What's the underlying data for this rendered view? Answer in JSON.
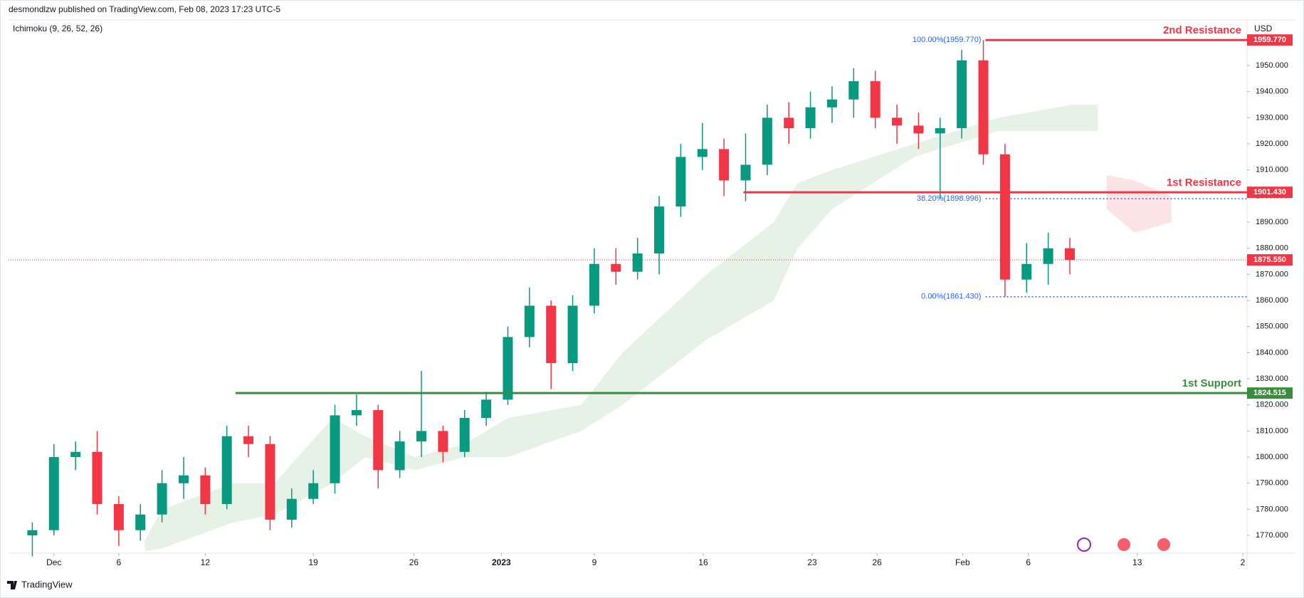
{
  "header": {
    "publisher": "desmondlzw published on TradingView.com, Feb 08, 2023 17:23 UTC-5",
    "indicator": "Ichimoku (9, 26, 52, 26)",
    "currency": "USD",
    "footer": "TradingView"
  },
  "chart_data": {
    "type": "candlestick",
    "x": [
      -1,
      0,
      1,
      2,
      3,
      4,
      5,
      6,
      7,
      8,
      9,
      10,
      11,
      12,
      13,
      14,
      15,
      16,
      17,
      18,
      19,
      20,
      21,
      22,
      23,
      24,
      25,
      26,
      27,
      28,
      29,
      30,
      31,
      32,
      33,
      34,
      35,
      36,
      37,
      38,
      39,
      40,
      41,
      42,
      43,
      44,
      45,
      46,
      47
    ],
    "open": [
      1770,
      1772,
      1800,
      1802,
      1782,
      1772,
      1778,
      1790,
      1793,
      1782,
      1808,
      1805,
      1776,
      1784,
      1790,
      1816,
      1818,
      1795,
      1806,
      1810,
      1802,
      1815,
      1822,
      1846,
      1858,
      1836,
      1858,
      1874,
      1871,
      1878,
      1896,
      1915,
      1918,
      1906,
      1912,
      1930,
      1926,
      1934,
      1937,
      1944,
      1930,
      1927,
      1924,
      1926,
      1952,
      1916,
      1868,
      1874,
      1880
    ],
    "high": [
      1775,
      1805,
      1806,
      1810,
      1785,
      1782,
      1795,
      1800,
      1796,
      1812,
      1812,
      1808,
      1788,
      1795,
      1820,
      1824,
      1820,
      1810,
      1833,
      1812,
      1818,
      1825,
      1850,
      1865,
      1860,
      1862,
      1880,
      1880,
      1884,
      1900,
      1920,
      1928,
      1922,
      1924,
      1935,
      1936,
      1940,
      1942,
      1949,
      1948,
      1935,
      1932,
      1930,
      1956,
      1959.77,
      1920,
      1882,
      1886,
      1884
    ],
    "low": [
      1762,
      1770,
      1795,
      1778,
      1766,
      1768,
      1775,
      1784,
      1778,
      1780,
      1800,
      1772,
      1773,
      1782,
      1786,
      1812,
      1788,
      1792,
      1800,
      1798,
      1800,
      1812,
      1820,
      1842,
      1826,
      1833,
      1855,
      1866,
      1868,
      1870,
      1892,
      1910,
      1900,
      1898,
      1908,
      1920,
      1922,
      1928,
      1930,
      1926,
      1920,
      1918,
      1899,
      1922,
      1912,
      1861.43,
      1863,
      1866,
      1870
    ],
    "close": [
      1772,
      1800,
      1802,
      1782,
      1772,
      1778,
      1790,
      1793,
      1782,
      1808,
      1805,
      1776,
      1784,
      1790,
      1816,
      1818,
      1795,
      1806,
      1810,
      1802,
      1815,
      1822,
      1846,
      1858,
      1836,
      1858,
      1874,
      1871,
      1878,
      1896,
      1915,
      1918,
      1906,
      1912,
      1930,
      1926,
      1934,
      1937,
      1944,
      1930,
      1927,
      1924,
      1926,
      1952,
      1916,
      1868,
      1874,
      1880,
      1875.55
    ],
    "up_color": "#089981",
    "down_color": "#f23645",
    "clouds": [
      {
        "color": "#e6f2e6",
        "x": [
          4.2,
          5,
          8.3,
          10.2,
          12.9,
          14.4,
          16.7,
          19,
          21,
          24.4,
          26.3,
          30.2,
          33.3,
          34.4,
          36,
          39.8,
          43.7,
          47.1,
          48.3
        ],
        "upper": [
          1768,
          1780,
          1790,
          1790,
          1815,
          1808,
          1800,
          1805,
          1815,
          1820,
          1840,
          1870,
          1890,
          1905,
          1910,
          1920,
          1930,
          1935,
          1935
        ],
        "lower": [
          1764,
          1765,
          1775,
          1778,
          1790,
          1800,
          1795,
          1800,
          1800,
          1810,
          1820,
          1845,
          1860,
          1880,
          1895,
          1915,
          1925,
          1925,
          1925
        ]
      },
      {
        "color": "#fde4e4",
        "x": [
          48.7,
          50,
          51.7
        ],
        "upper": [
          1908,
          1906,
          1900
        ],
        "lower": [
          1895,
          1886,
          1890
        ]
      }
    ],
    "levels": [
      {
        "name": "2nd Resistance",
        "value": 1959.77,
        "label": "1959.770",
        "color": "#f23645",
        "start": 43.1
      },
      {
        "name": "1st Resistance",
        "value": 1901.43,
        "label": "1901.430",
        "color": "#f23645",
        "start": 31.9
      },
      {
        "name": "1st Support",
        "value": 1824.515,
        "label": "1824.515",
        "color": "#388e3c",
        "start": 8.4
      }
    ],
    "last_price": {
      "value": 1875.55,
      "label": "1875.550",
      "color": "#f23645"
    },
    "fib": {
      "start": 43.1,
      "color": "#2962ff",
      "levels": [
        {
          "value": 1959.77,
          "label": "100.00%(1959.770)"
        },
        {
          "value": 1898.996,
          "label": "38.20%(1898.996)"
        },
        {
          "value": 1861.43,
          "label": "0.00%(1861.430)"
        }
      ]
    },
    "xlim": [
      -2.1,
      55.2
    ],
    "ylim": [
      1763.2,
      1967.2
    ],
    "xticks": [
      {
        "value": 0,
        "label": "Dec"
      },
      {
        "value": 3,
        "label": "6"
      },
      {
        "value": 7,
        "label": "12"
      },
      {
        "value": 12,
        "label": "19"
      },
      {
        "value": 16.65,
        "label": "26"
      },
      {
        "value": 20.7,
        "label": "2023"
      },
      {
        "value": 25,
        "label": "9"
      },
      {
        "value": 30.04,
        "label": "16"
      },
      {
        "value": 35.08,
        "label": "23"
      },
      {
        "value": 38.08,
        "label": "26"
      },
      {
        "value": 42.04,
        "label": "Feb"
      },
      {
        "value": 45.08,
        "label": "6"
      },
      {
        "value": 50.12,
        "label": "13"
      },
      {
        "value": 55,
        "label": "2"
      }
    ],
    "yticks": [
      {
        "value": 1770,
        "label": "1770.000"
      },
      {
        "value": 1780,
        "label": "1780.000"
      },
      {
        "value": 1790,
        "label": "1790.000"
      },
      {
        "value": 1800,
        "label": "1800.000"
      },
      {
        "value": 1810,
        "label": "1810.000"
      },
      {
        "value": 1820,
        "label": "1820.000"
      },
      {
        "value": 1830,
        "label": "1830.000"
      },
      {
        "value": 1840,
        "label": "1840.000"
      },
      {
        "value": 1850,
        "label": "1850.000"
      },
      {
        "value": 1860,
        "label": "1860.000"
      },
      {
        "value": 1870,
        "label": "1870.000"
      },
      {
        "value": 1880,
        "label": "1880.000"
      },
      {
        "value": 1890,
        "label": "1890.000"
      },
      {
        "value": 1900,
        "label": "1900.000"
      },
      {
        "value": 1910,
        "label": "1910.000"
      },
      {
        "value": 1920,
        "label": "1920.000"
      },
      {
        "value": 1930,
        "label": "1930.000"
      },
      {
        "value": 1940,
        "label": "1940.000"
      },
      {
        "value": 1950,
        "label": "1950.000"
      }
    ]
  }
}
